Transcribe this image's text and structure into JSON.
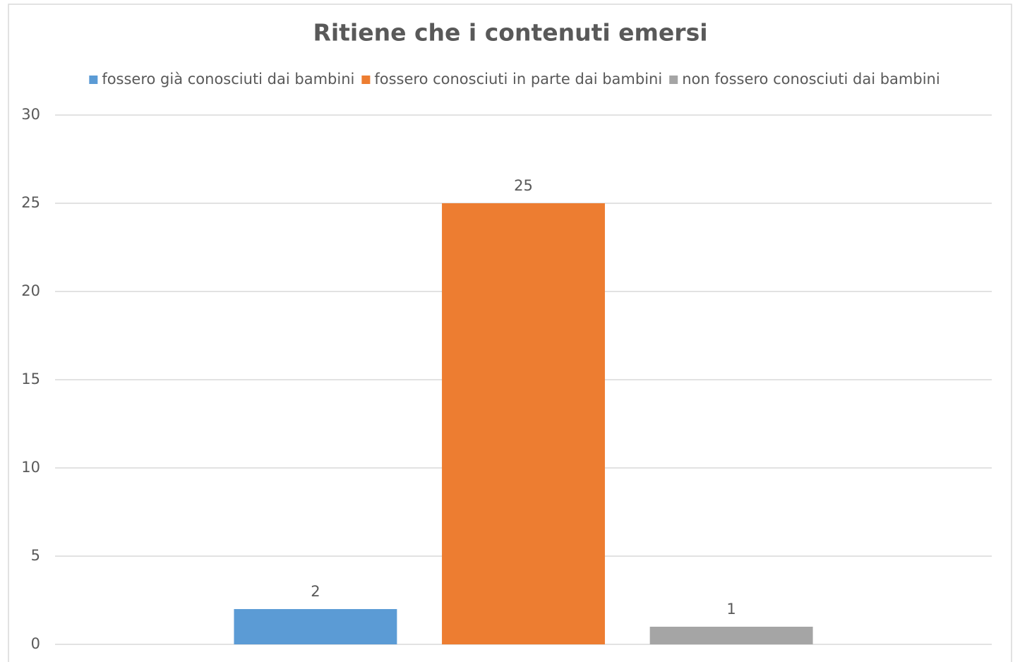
{
  "chart_data": {
    "type": "bar",
    "title": "Ritiene che i contenuti emersi",
    "categories": [
      null
    ],
    "series": [
      {
        "name": "fossero già conosciuti dai bambini",
        "color": "#5b9bd5",
        "values": [
          2
        ]
      },
      {
        "name": "fossero conosciuti in parte dai bambini",
        "color": "#ed7d31",
        "values": [
          25
        ]
      },
      {
        "name": "non fossero conosciuti dai bambini",
        "color": "#a5a5a5",
        "values": [
          1
        ]
      }
    ],
    "ylim": [
      0,
      30
    ],
    "yticks": [
      0,
      5,
      10,
      15,
      20,
      25,
      30
    ],
    "grid": true,
    "legend": "top",
    "data_labels": true
  }
}
